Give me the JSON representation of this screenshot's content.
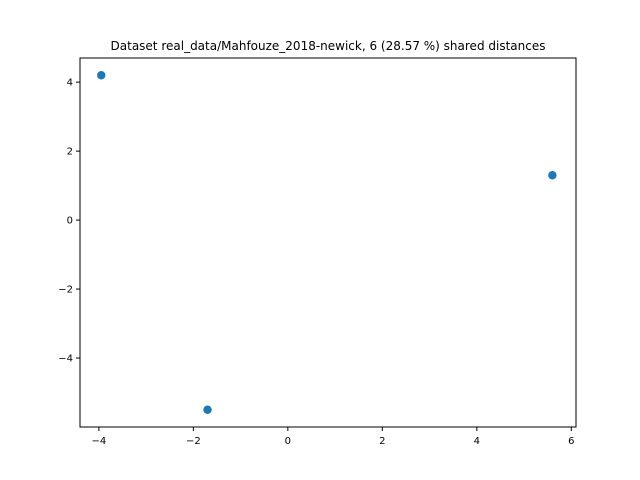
{
  "chart_data": {
    "type": "scatter",
    "title": "Dataset real_data/Mahfouze_2018-newick, 6 (28.57 %) shared distances",
    "xlabel": "",
    "ylabel": "",
    "xlim": [
      -4.4,
      6.1
    ],
    "ylim": [
      -6.0,
      4.7
    ],
    "xticks": [
      -4,
      -2,
      0,
      2,
      4,
      6
    ],
    "yticks": [
      -4,
      -2,
      0,
      2,
      4
    ],
    "grid": false,
    "legend": "none",
    "series": [
      {
        "color": "#1f77b4",
        "points": [
          {
            "x": -3.95,
            "y": 4.2
          },
          {
            "x": -1.7,
            "y": -5.5
          },
          {
            "x": 5.6,
            "y": 1.3
          }
        ]
      }
    ]
  }
}
